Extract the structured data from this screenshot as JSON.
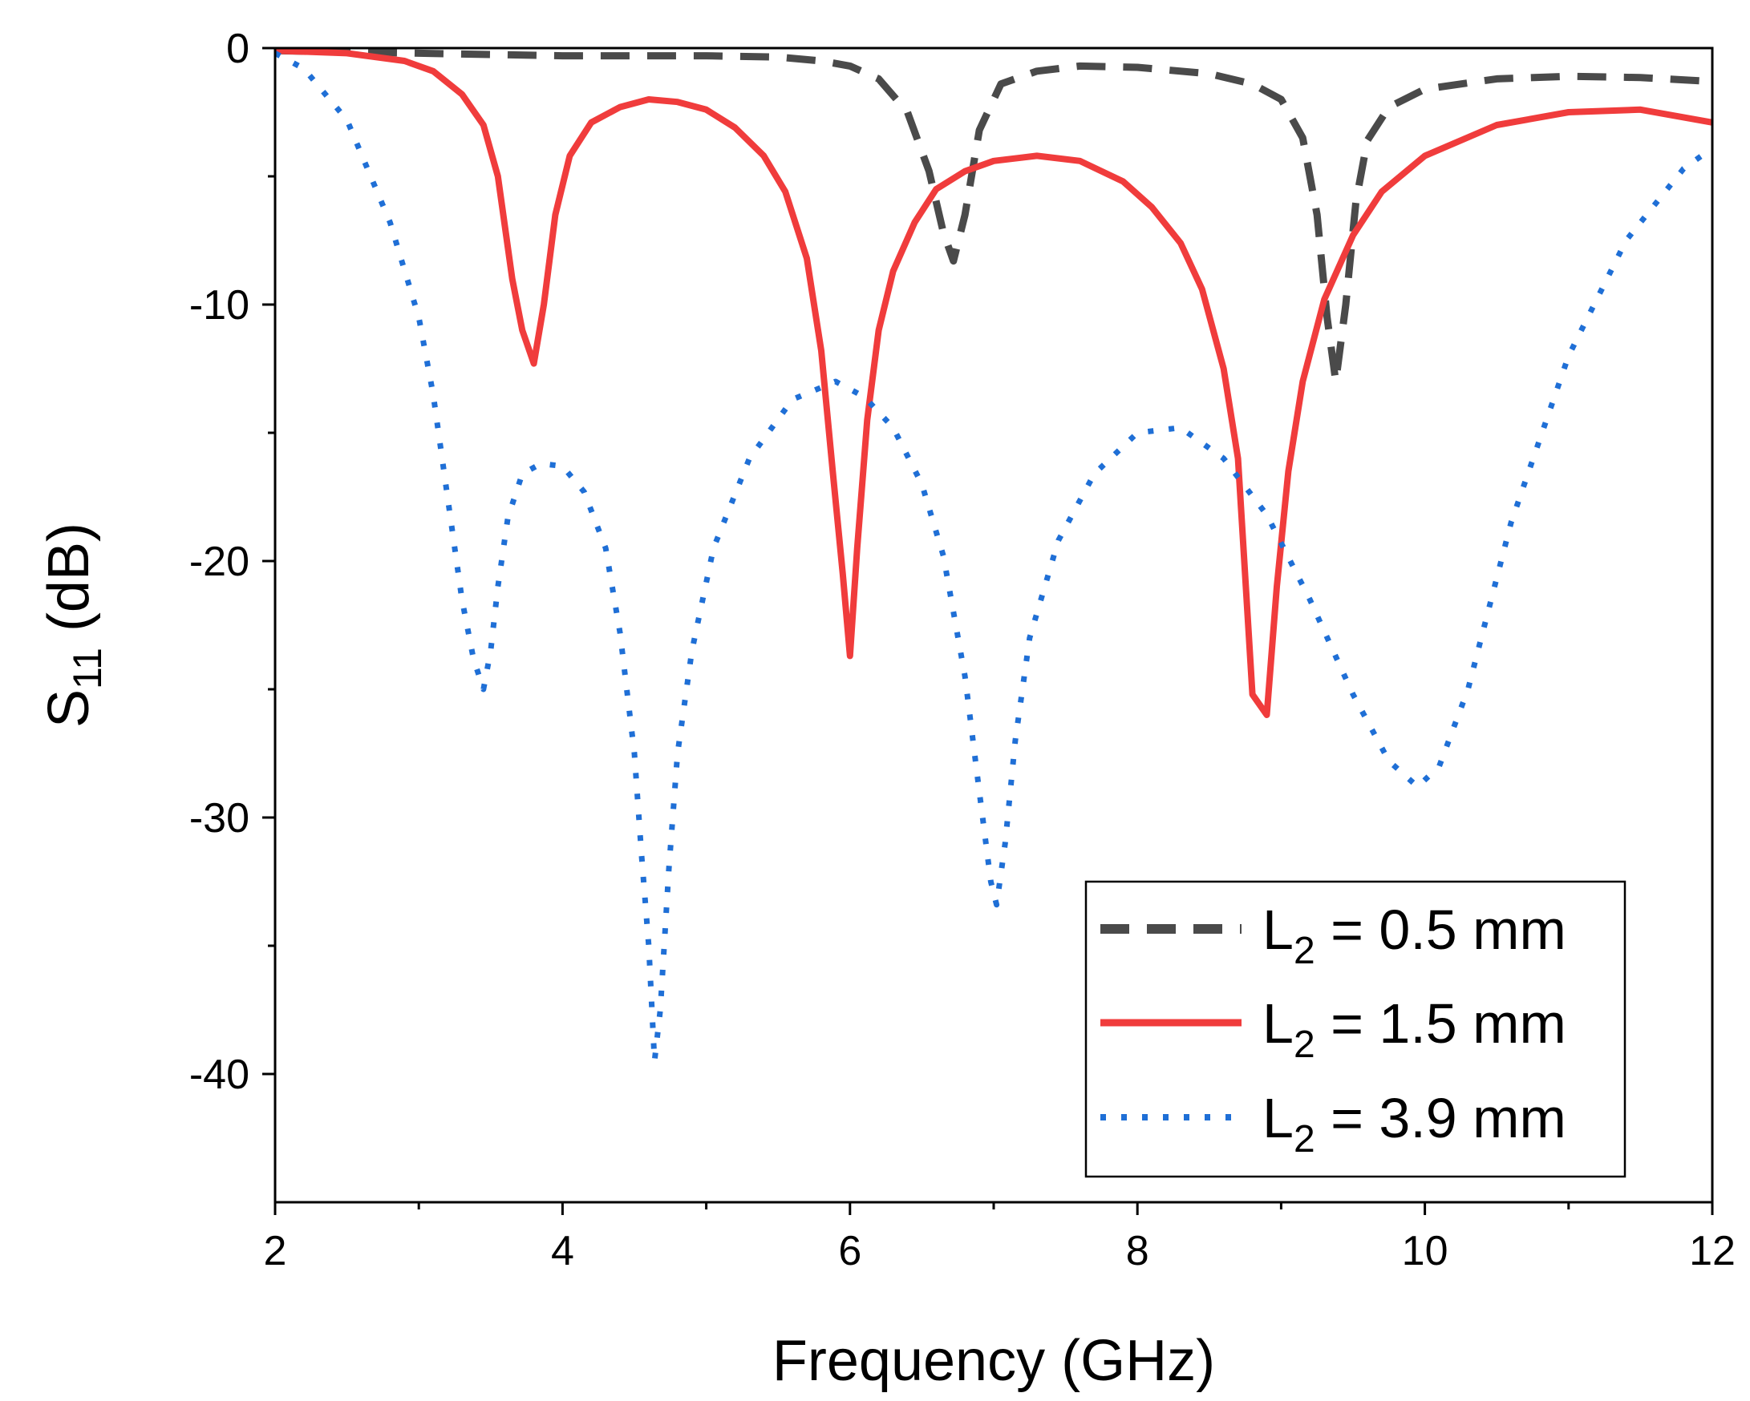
{
  "chart_data": {
    "type": "line",
    "title": "",
    "xlabel": "Frequency (GHz)",
    "ylabel": {
      "main": "S",
      "sub": "11",
      "suffix": " (dB)"
    },
    "xlim": [
      2,
      12
    ],
    "ylim": [
      -45,
      0
    ],
    "xticks": [
      2,
      4,
      6,
      8,
      10,
      12
    ],
    "xtick_labels": [
      "2",
      "4",
      "6",
      "8",
      "10",
      "12"
    ],
    "yticks": [
      0,
      -10,
      -20,
      -30,
      -40
    ],
    "ytick_labels": [
      "0",
      "-10",
      "-20",
      "-30",
      "-40"
    ],
    "grid": false,
    "legend_position": "bottom-right",
    "series": [
      {
        "name": "L2 = 0.5 mm",
        "legend": {
          "main": "L",
          "sub": "2",
          "suffix": " = 0.5 mm"
        },
        "style": "dashed",
        "color": "#4a4a4a",
        "x": [
          2.0,
          2.5,
          3.0,
          3.5,
          4.0,
          4.5,
          5.0,
          5.5,
          5.8,
          6.0,
          6.2,
          6.4,
          6.55,
          6.65,
          6.72,
          6.8,
          6.9,
          7.05,
          7.3,
          7.6,
          8.0,
          8.5,
          8.8,
          9.0,
          9.15,
          9.25,
          9.32,
          9.38,
          9.45,
          9.52,
          9.6,
          9.75,
          10.0,
          10.5,
          11.0,
          11.5,
          12.0
        ],
        "y": [
          -0.1,
          -0.15,
          -0.2,
          -0.25,
          -0.3,
          -0.3,
          -0.3,
          -0.35,
          -0.5,
          -0.7,
          -1.2,
          -2.5,
          -4.8,
          -7.2,
          -8.3,
          -6.5,
          -3.2,
          -1.4,
          -0.9,
          -0.7,
          -0.75,
          -1.0,
          -1.4,
          -2.0,
          -3.5,
          -6.5,
          -10.5,
          -13.0,
          -10.0,
          -6.0,
          -3.6,
          -2.3,
          -1.6,
          -1.2,
          -1.1,
          -1.15,
          -1.3
        ]
      },
      {
        "name": "L2 = 1.5 mm",
        "legend": {
          "main": "L",
          "sub": "2",
          "suffix": " = 1.5 mm"
        },
        "style": "solid",
        "color": "#f03c3c",
        "x": [
          2.0,
          2.5,
          2.9,
          3.1,
          3.3,
          3.45,
          3.55,
          3.65,
          3.72,
          3.8,
          3.87,
          3.95,
          4.05,
          4.2,
          4.4,
          4.6,
          4.8,
          5.0,
          5.2,
          5.4,
          5.55,
          5.7,
          5.8,
          5.88,
          5.95,
          6.0,
          6.05,
          6.12,
          6.2,
          6.3,
          6.45,
          6.6,
          6.8,
          7.0,
          7.3,
          7.6,
          7.9,
          8.1,
          8.3,
          8.45,
          8.6,
          8.7,
          8.8,
          8.9,
          8.97,
          9.05,
          9.15,
          9.3,
          9.5,
          9.7,
          10.0,
          10.5,
          11.0,
          11.5,
          12.0
        ],
        "y": [
          -0.1,
          -0.2,
          -0.5,
          -0.9,
          -1.8,
          -3.0,
          -5.0,
          -9.0,
          -11.0,
          -12.3,
          -10.0,
          -6.5,
          -4.2,
          -2.9,
          -2.3,
          -2.0,
          -2.1,
          -2.4,
          -3.1,
          -4.2,
          -5.6,
          -8.2,
          -11.8,
          -16.5,
          -20.5,
          -23.7,
          -19.5,
          -14.5,
          -11.0,
          -8.7,
          -6.8,
          -5.5,
          -4.8,
          -4.4,
          -4.2,
          -4.4,
          -5.2,
          -6.2,
          -7.6,
          -9.4,
          -12.5,
          -16.0,
          -25.2,
          -26.0,
          -21.0,
          -16.5,
          -13.0,
          -9.8,
          -7.3,
          -5.6,
          -4.2,
          -3.0,
          -2.5,
          -2.4,
          -2.9
        ]
      },
      {
        "name": "L2 = 3.9 mm",
        "legend": {
          "main": "L",
          "sub": "2",
          "suffix": " = 3.9 mm"
        },
        "style": "dotted",
        "color": "#1f6fd6",
        "x": [
          2.0,
          2.2,
          2.5,
          2.8,
          3.0,
          3.1,
          3.2,
          3.3,
          3.38,
          3.45,
          3.5,
          3.55,
          3.62,
          3.72,
          3.85,
          4.0,
          4.15,
          4.3,
          4.4,
          4.5,
          4.55,
          4.6,
          4.64,
          4.68,
          4.74,
          4.8,
          4.9,
          5.05,
          5.3,
          5.6,
          5.9,
          6.1,
          6.3,
          6.5,
          6.65,
          6.8,
          6.9,
          6.98,
          7.02,
          7.08,
          7.15,
          7.25,
          7.45,
          7.7,
          8.0,
          8.3,
          8.6,
          8.9,
          9.2,
          9.5,
          9.75,
          9.95,
          10.1,
          10.3,
          10.6,
          11.0,
          11.4,
          11.8,
          12.0
        ],
        "y": [
          -0.2,
          -0.8,
          -2.8,
          -6.8,
          -10.5,
          -13.5,
          -17.5,
          -21.5,
          -23.8,
          -25.0,
          -23.5,
          -21.0,
          -18.3,
          -16.6,
          -16.2,
          -16.3,
          -17.3,
          -19.5,
          -22.8,
          -27.5,
          -31.5,
          -35.0,
          -39.5,
          -37.5,
          -32.0,
          -27.5,
          -23.5,
          -19.5,
          -16.0,
          -13.7,
          -13.0,
          -13.6,
          -14.8,
          -17.0,
          -19.8,
          -24.5,
          -29.0,
          -32.5,
          -33.4,
          -31.0,
          -27.0,
          -23.0,
          -19.2,
          -16.6,
          -15.0,
          -14.8,
          -16.0,
          -18.2,
          -21.5,
          -25.2,
          -27.8,
          -28.8,
          -28.0,
          -25.0,
          -18.5,
          -12.0,
          -7.5,
          -4.7,
          -3.9
        ]
      }
    ]
  }
}
